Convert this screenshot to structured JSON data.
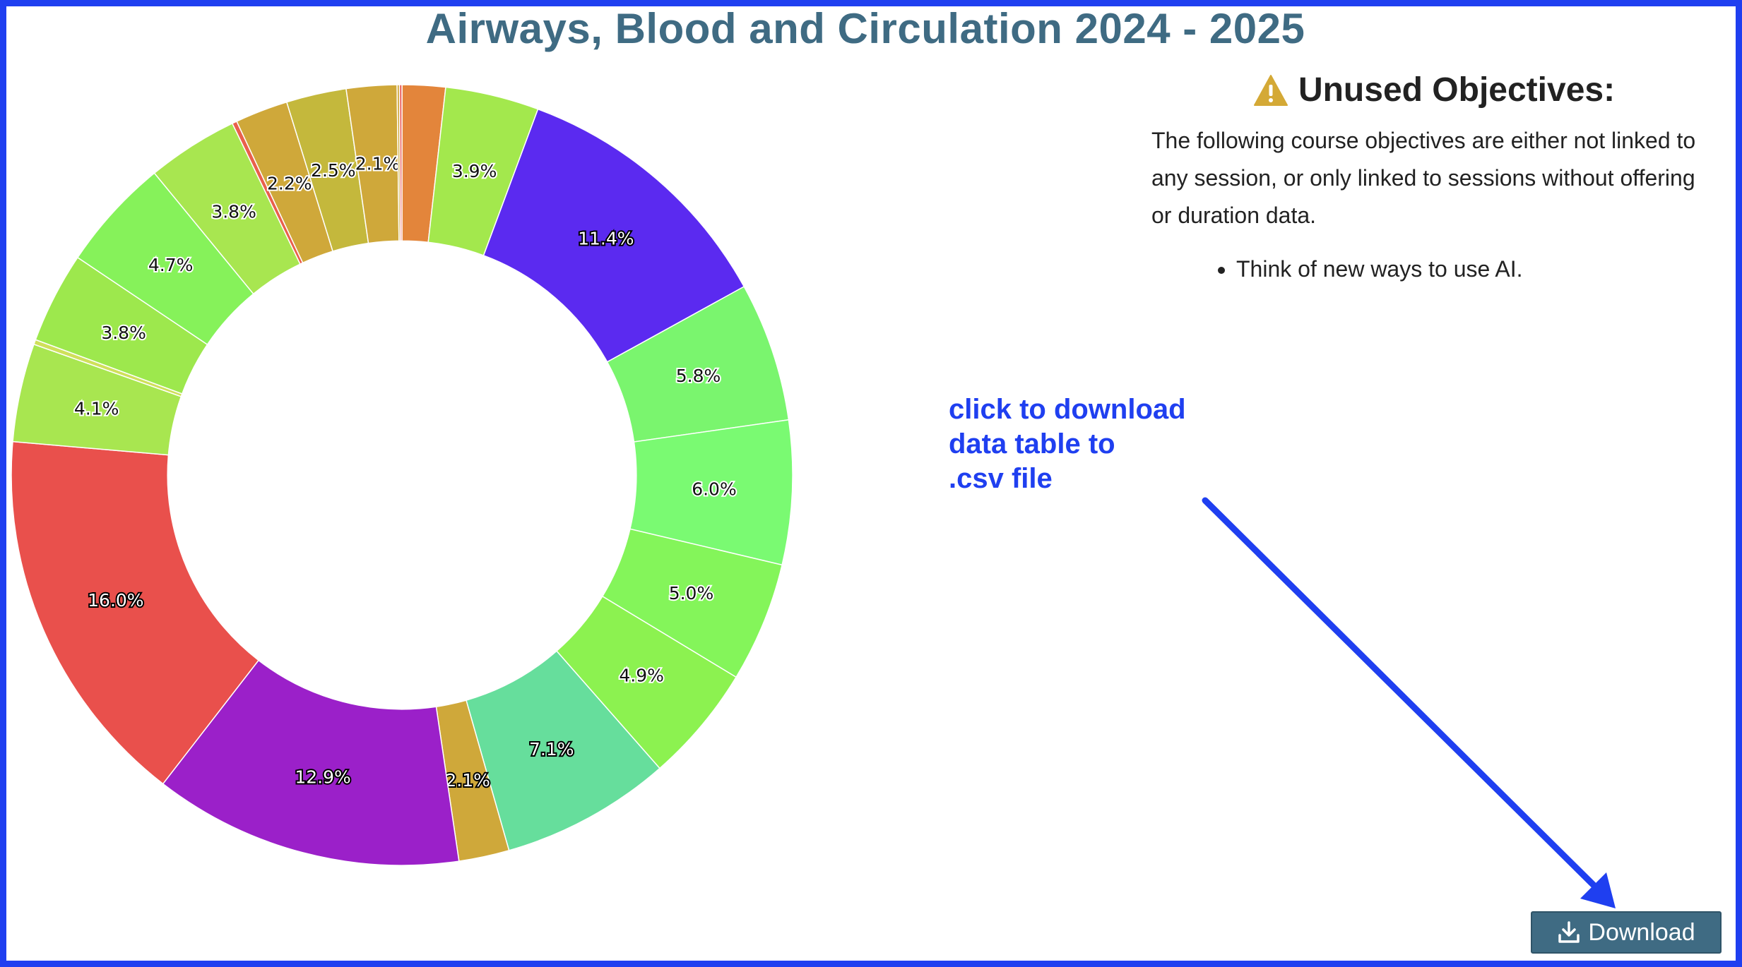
{
  "page": {
    "title": "Airways, Blood and Circulation 2024 - 2025"
  },
  "unused": {
    "heading": "Unused Objectives:",
    "icon": "warning-icon",
    "icon_color": "#d4a936",
    "description": "The following course objectives are either not linked to any session, or only linked to sessions without offering or duration data.",
    "items": [
      "Think of new ways to use AI."
    ]
  },
  "annotation": {
    "text": "click to download\ndata table to\n.csv file",
    "color": "#1f3ff0"
  },
  "download": {
    "label": "Download",
    "icon": "download-icon",
    "color": "#3f6b83"
  },
  "chart_data": {
    "type": "pie",
    "hole": 0.6,
    "title": "Airways, Blood and Circulation 2024 - 2025",
    "series": [
      {
        "values": [
          1.8,
          3.9,
          11.4,
          5.8,
          6.0,
          5.0,
          4.9,
          7.1,
          2.1,
          12.9,
          16.0,
          4.1,
          0.2,
          3.8,
          4.7,
          3.8,
          0.2,
          2.2,
          2.5,
          2.1,
          0.1,
          0.1
        ],
        "labels": [
          "1.8%",
          "3.9%",
          "11.4%",
          "5.8%",
          "6.0%",
          "5.0%",
          "4.9%",
          "7.1%",
          "2.1%",
          "12.9%",
          "16.0%",
          "4.1%",
          "0.2%",
          "3.8%",
          "4.7%",
          "3.8%",
          "0.2%",
          "2.2%",
          "2.5%",
          "2.1%",
          "0.1%",
          "0.1%"
        ],
        "colors": [
          "#e3853b",
          "#a3e84d",
          "#5b2af0",
          "#7af56e",
          "#7afa72",
          "#84f55a",
          "#8cf250",
          "#66de9c",
          "#cfa83a",
          "#9b20c9",
          "#e9504c",
          "#a8e650",
          "#cfe05a",
          "#9de84d",
          "#86f25a",
          "#a8e650",
          "#e9604c",
          "#cfa83a",
          "#c4b83c",
          "#cfa83a",
          "#cfa83a",
          "#e9504c"
        ],
        "label_style": [
          "none",
          "dark",
          "outline",
          "dark",
          "dark",
          "dark",
          "dark",
          "outline",
          "outline",
          "outline",
          "outline",
          "dark",
          "none",
          "dark",
          "dark",
          "dark",
          "none",
          "dark",
          "dark",
          "dark",
          "none",
          "none"
        ]
      }
    ]
  }
}
